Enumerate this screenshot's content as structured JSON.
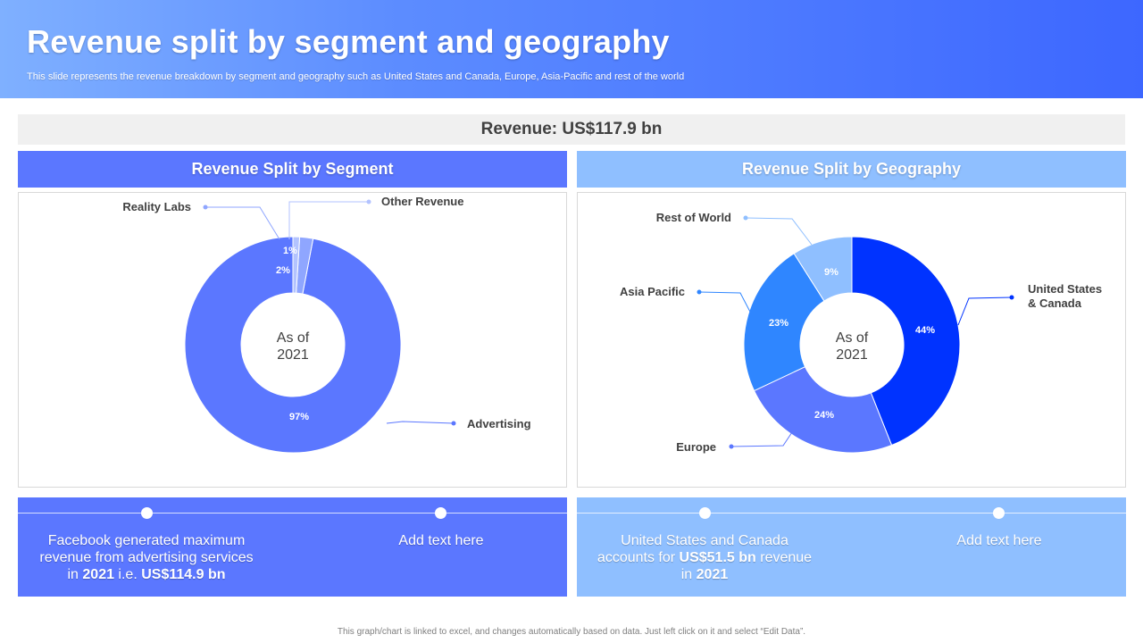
{
  "header": {
    "title": "Revenue split by segment and geography",
    "subtitle": "This slide represents the revenue breakdown by segment and geography such as United States and Canada, Europe, Asia-Pacific and rest of the world"
  },
  "revenue_total": "Revenue: US$117.9 bn",
  "panels": {
    "segment_title": "Revenue Split by Segment",
    "geography_title": "Revenue Split by Geography",
    "center_label_line1": "As of",
    "center_label_line2": "2021"
  },
  "colors": {
    "segment_panel": "#5b77ff",
    "geography_panel": "#8fbfff"
  },
  "chart_data": [
    {
      "type": "pie",
      "variant": "donut",
      "center_text": [
        "As of",
        "2021"
      ],
      "slices": [
        {
          "label": "Advertising",
          "value": 97,
          "display": "97%",
          "color": "#5b77ff"
        },
        {
          "label": "Reality Labs",
          "value": 2,
          "display": "2%",
          "color": "#8fa6ff"
        },
        {
          "label": "Other Revenue",
          "value": 1,
          "display": "1%",
          "color": "#b3c3ff"
        }
      ]
    },
    {
      "type": "pie",
      "variant": "donut",
      "center_text": [
        "As of",
        "2021"
      ],
      "slices": [
        {
          "label": "United States & Canada",
          "value": 44,
          "display": "44%",
          "color": "#0033ff"
        },
        {
          "label": "Europe",
          "value": 24,
          "display": "24%",
          "color": "#5b77ff"
        },
        {
          "label": "Asia Pacific",
          "value": 23,
          "display": "23%",
          "color": "#2f86ff"
        },
        {
          "label": "Rest of World",
          "value": 9,
          "display": "9%",
          "color": "#8fbfff"
        }
      ]
    }
  ],
  "footer": {
    "left_text_1_pre": "Facebook generated maximum revenue from advertising services in ",
    "left_text_1_year": "2021",
    "left_text_1_mid": " i.e. ",
    "left_text_1_amount": "US$114.9 bn",
    "left_text_2": "Add text here",
    "right_text_1_pre": "United States and Canada accounts for ",
    "right_text_1_amount": "US$51.5 bn",
    "right_text_1_mid": " revenue in ",
    "right_text_1_year": "2021",
    "right_text_2": "Add text here"
  },
  "note": "This graph/chart is linked to excel, and changes automatically based on data. Just left click on it and select “Edit Data”."
}
